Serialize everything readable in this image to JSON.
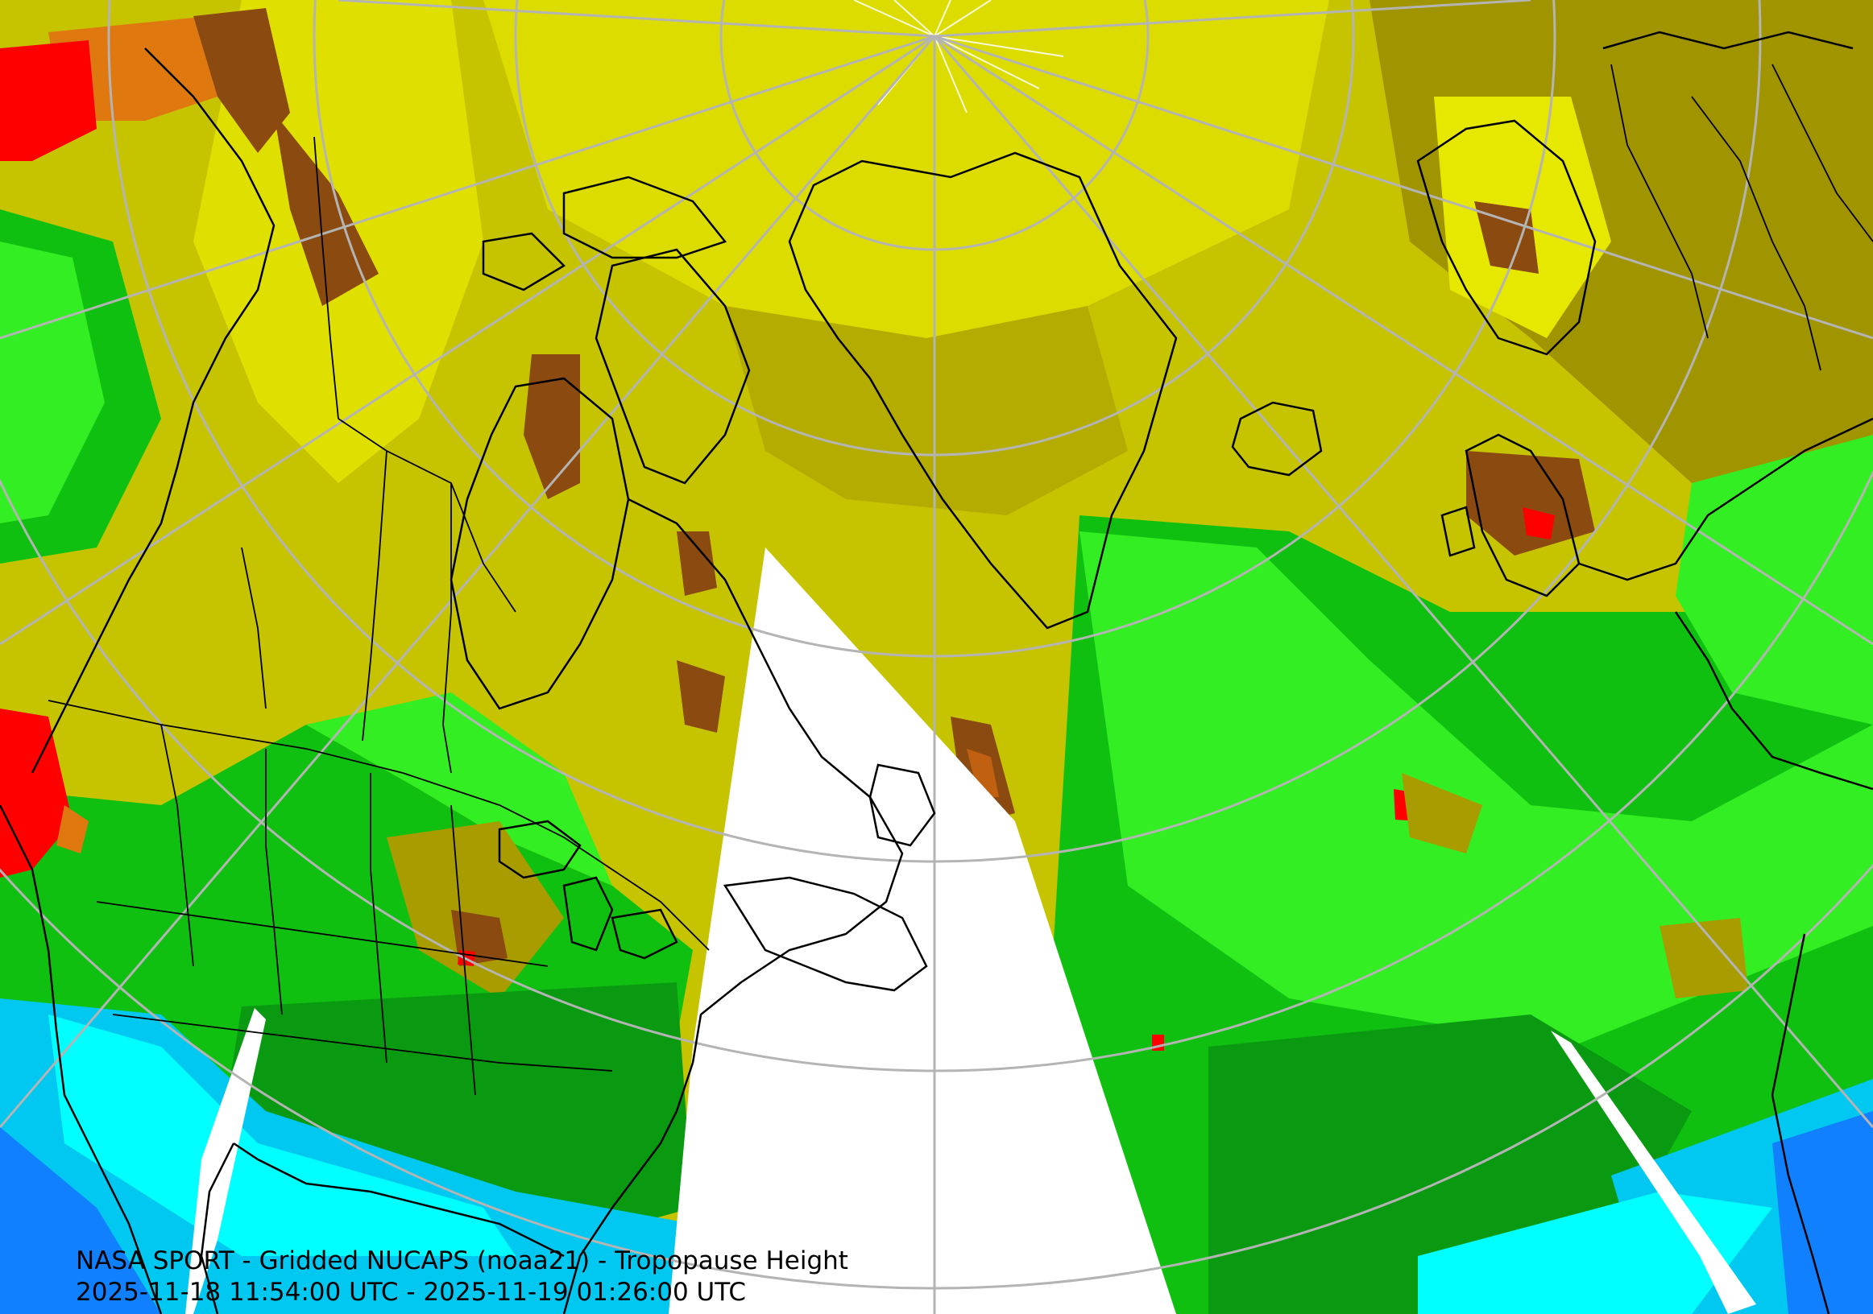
{
  "map": {
    "title": "NASA SPORT - Gridded NUCAPS (noaa21) - Tropopause Height",
    "time_range": "2025-11-18 11:54:00 UTC - 2025-11-19 01:26:00 UTC",
    "colors": {
      "very_high": "#e8ec00",
      "high": "#c6c400",
      "mid_high": "#9e9000",
      "brown": "#8a4a10",
      "orange": "#e07810",
      "red": "#ff0000",
      "green_light": "#33ee22",
      "green": "#10c010",
      "green_dark": "#0a9a12",
      "cyan": "#00ffff",
      "light_blue": "#00c8f0",
      "blue": "#1080ff",
      "no_data": "#ffffff",
      "coastline": "#000000",
      "graticule": "#b4b4b4"
    }
  }
}
